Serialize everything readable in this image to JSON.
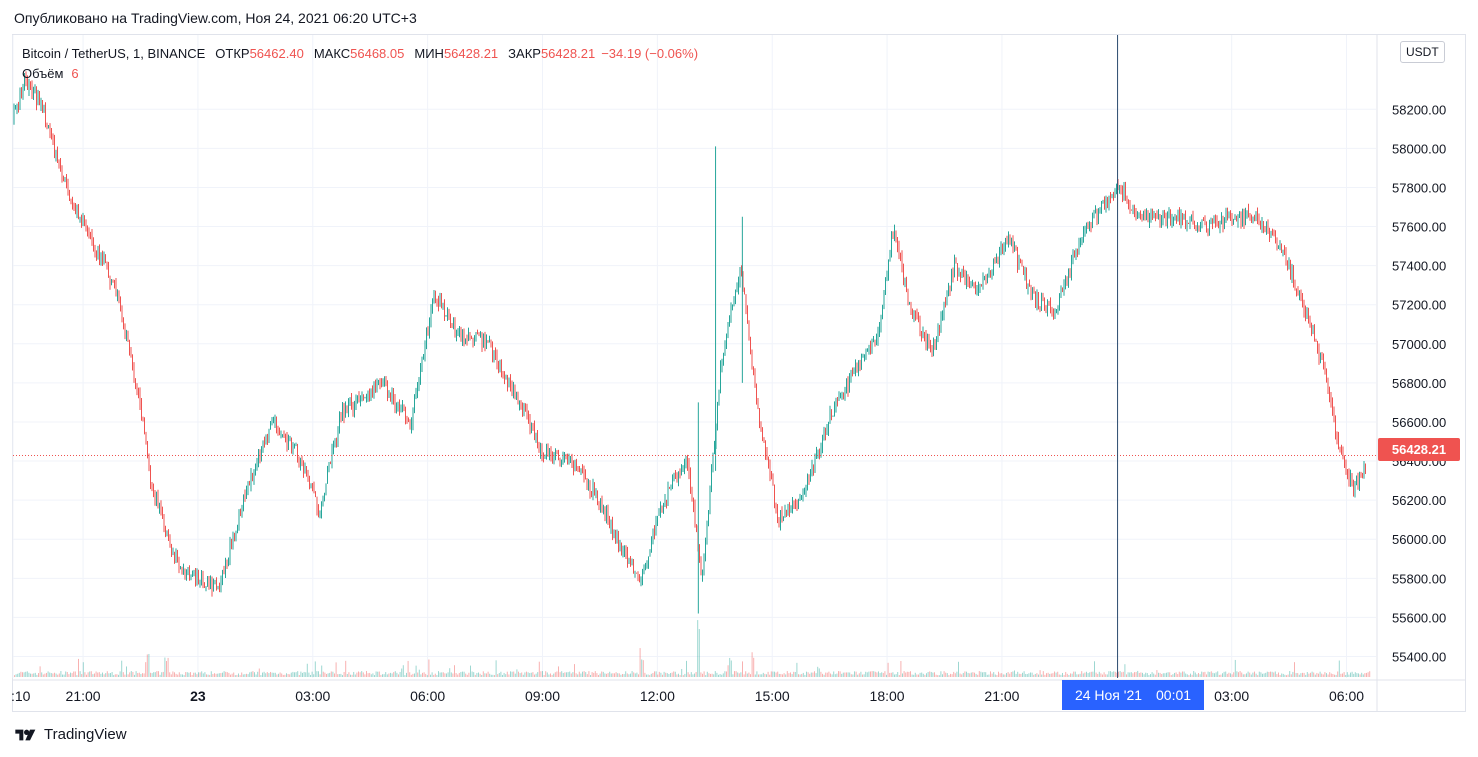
{
  "header": {
    "published_text": "Опубликовано на TradingView.com, Ноя 24, 2021 06:20 UTC+3"
  },
  "legend": {
    "symbol": "Bitcoin / TetherUS, 1, BINANCE",
    "open_label": "ОТКР",
    "open_value": "56462.40",
    "high_label": "МАКС",
    "high_value": "56468.05",
    "low_label": "МИН",
    "low_value": "56428.21",
    "close_label": "ЗАКР",
    "close_value": "56428.21",
    "change_value": "−34.19 (−0.06%)",
    "volume_label": "Объём",
    "volume_value": "6"
  },
  "currency_badge": "USDT",
  "last_price_tag": "56428.21",
  "crosshair_time": {
    "date": "24 Ноя '21",
    "time": "00:01"
  },
  "footer": {
    "brand": "TradingView"
  },
  "colors": {
    "up": "#26a69a",
    "down": "#ef5350",
    "grid": "#f0f3fa",
    "crosshair": "#2a4a6e",
    "accent": "#2962ff"
  },
  "chart_data": {
    "type": "candlestick",
    "title": "Bitcoin / TetherUS, 1, BINANCE",
    "xlabel": "",
    "ylabel": "",
    "y_ticks": [
      58200,
      58000,
      57800,
      57600,
      57400,
      57200,
      57000,
      56800,
      56600,
      56400,
      56200,
      56000,
      55800,
      55600,
      55400
    ],
    "y_tick_labels": [
      "58200.00",
      "58000.00",
      "57800.00",
      "57600.00",
      "57400.00",
      "57200.00",
      "57000.00",
      "56800.00",
      "56600.00",
      "56400.00",
      "56200.00",
      "56000.00",
      "55800.00",
      "55600.00",
      "55400.00"
    ],
    "ylim": [
      55290,
      58580
    ],
    "x_tick_labels": [
      ":10",
      "21:00",
      "23",
      "03:00",
      "06:00",
      "09:00",
      "12:00",
      "15:00",
      "18:00",
      "21:00",
      "03:00",
      "06:00"
    ],
    "x_tick_hours": [
      0,
      1.83,
      4.83,
      7.83,
      10.83,
      13.83,
      16.83,
      19.83,
      22.83,
      25.83,
      31.83,
      34.83
    ],
    "last_price": 56428.21,
    "crosshair_hour": 28.85,
    "price_path": [
      [
        0,
        58150
      ],
      [
        0.3,
        58350
      ],
      [
        0.8,
        58200
      ],
      [
        1.2,
        57900
      ],
      [
        1.6,
        57700
      ],
      [
        2.0,
        57550
      ],
      [
        2.4,
        57400
      ],
      [
        2.8,
        57200
      ],
      [
        3.3,
        56700
      ],
      [
        3.6,
        56300
      ],
      [
        4.2,
        55900
      ],
      [
        4.7,
        55800
      ],
      [
        5.4,
        55750
      ],
      [
        6.0,
        56200
      ],
      [
        6.8,
        56600
      ],
      [
        7.4,
        56450
      ],
      [
        8.0,
        56150
      ],
      [
        8.6,
        56650
      ],
      [
        9.6,
        56800
      ],
      [
        10.4,
        56600
      ],
      [
        11.0,
        57250
      ],
      [
        11.6,
        57050
      ],
      [
        12.4,
        57000
      ],
      [
        13.1,
        56750
      ],
      [
        13.8,
        56450
      ],
      [
        14.6,
        56400
      ],
      [
        15.3,
        56200
      ],
      [
        15.9,
        55950
      ],
      [
        16.4,
        55800
      ],
      [
        17.0,
        56200
      ],
      [
        17.6,
        56400
      ],
      [
        18.0,
        55800
      ],
      [
        18.5,
        56900
      ],
      [
        19.0,
        57400
      ],
      [
        19.5,
        56600
      ],
      [
        20.0,
        56100
      ],
      [
        20.6,
        56200
      ],
      [
        21.4,
        56650
      ],
      [
        22.1,
        56900
      ],
      [
        22.6,
        57050
      ],
      [
        23.0,
        57600
      ],
      [
        23.4,
        57200
      ],
      [
        24.0,
        56950
      ],
      [
        24.6,
        57400
      ],
      [
        25.2,
        57250
      ],
      [
        26.0,
        57550
      ],
      [
        26.6,
        57250
      ],
      [
        27.2,
        57150
      ],
      [
        27.8,
        57500
      ],
      [
        28.4,
        57700
      ],
      [
        28.9,
        57800
      ],
      [
        29.4,
        57650
      ],
      [
        30.3,
        57650
      ],
      [
        31.2,
        57600
      ],
      [
        31.9,
        57650
      ],
      [
        32.5,
        57650
      ],
      [
        33.2,
        57450
      ],
      [
        33.7,
        57200
      ],
      [
        34.2,
        56900
      ],
      [
        34.6,
        56500
      ],
      [
        35.0,
        56250
      ],
      [
        35.4,
        56420
      ]
    ],
    "volume_spikes": [
      {
        "hour": 17.9,
        "value": 170
      },
      {
        "hour": 16.4,
        "value": 60
      },
      {
        "hour": 19.3,
        "value": 60
      },
      {
        "hour": 18.7,
        "value": 40
      },
      {
        "hour": 3.5,
        "value": 50
      },
      {
        "hour": 4.0,
        "value": 40
      }
    ]
  }
}
